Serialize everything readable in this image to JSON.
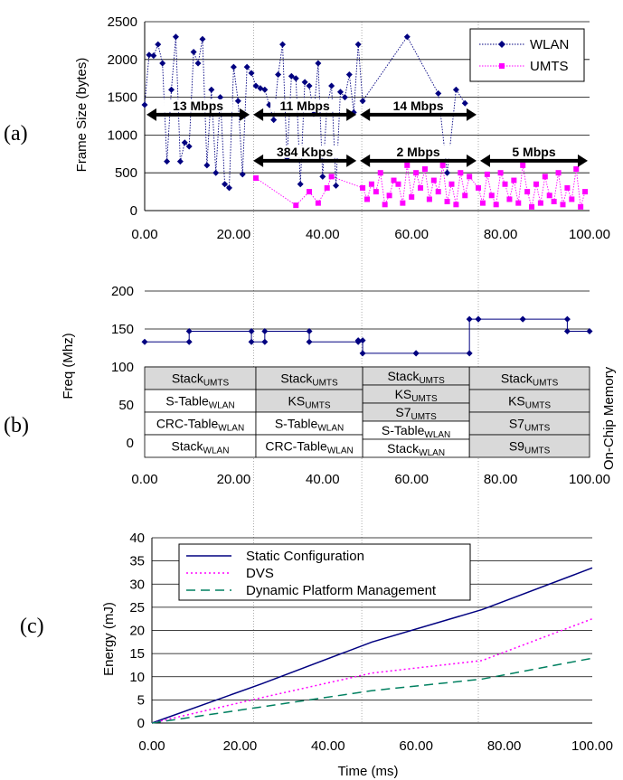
{
  "chart_data": [
    {
      "id": "a",
      "panel_label": "(a)",
      "type": "line",
      "ylabel": "Frame Size (bytes)",
      "xlim": [
        0,
        100
      ],
      "ylim": [
        0,
        2500
      ],
      "xticks": [
        "0.00",
        "20.00",
        "40.00",
        "60.00",
        "80.00",
        "100.00"
      ],
      "yticks": [
        "0",
        "500",
        "1000",
        "1500",
        "2000",
        "2500"
      ],
      "legend_position": "top-right",
      "series": [
        {
          "name": "WLAN",
          "color": "#000080",
          "marker": "diamond",
          "x": [
            0,
            1,
            2,
            3,
            4,
            5,
            6,
            7,
            8,
            9,
            10,
            11,
            12,
            13,
            14,
            15,
            16,
            17,
            18,
            19,
            20,
            21,
            22,
            23,
            24,
            25,
            26,
            27,
            28,
            29,
            30,
            31,
            32,
            33,
            34,
            35,
            36,
            37,
            38,
            39,
            40,
            41,
            42,
            43,
            44,
            45,
            46,
            47,
            48,
            49,
            59,
            66,
            68,
            70,
            72
          ],
          "y": [
            1400,
            2060,
            2050,
            2200,
            1950,
            650,
            1600,
            2300,
            650,
            900,
            850,
            2100,
            1950,
            2270,
            600,
            1600,
            500,
            1500,
            350,
            300,
            1900,
            1450,
            480,
            1900,
            1820,
            1650,
            1620,
            1600,
            1400,
            1200,
            1800,
            2200,
            700,
            1780,
            1750,
            350,
            1700,
            1650,
            1280,
            1950,
            450,
            1400,
            1650,
            330,
            1570,
            1500,
            1800,
            1300,
            2200,
            1450,
            2300,
            1550,
            500,
            1600,
            1420
          ]
        },
        {
          "name": "UMTS",
          "color": "#ff00ff",
          "marker": "square",
          "x": [
            25,
            34,
            37,
            39,
            41,
            42,
            49,
            50,
            51,
            52,
            53,
            54,
            55,
            56,
            57,
            58,
            59,
            60,
            61,
            62,
            63,
            64,
            65,
            66,
            67,
            68,
            69,
            70,
            71,
            72,
            73,
            75,
            76,
            77,
            78,
            79,
            80,
            81,
            82,
            83,
            84,
            85,
            86,
            87,
            88,
            89,
            90,
            91,
            92,
            93,
            94,
            95,
            96,
            97,
            98,
            99
          ],
          "y": [
            430,
            70,
            250,
            100,
            300,
            450,
            300,
            150,
            350,
            250,
            500,
            80,
            200,
            400,
            350,
            100,
            600,
            180,
            500,
            300,
            550,
            150,
            400,
            250,
            600,
            120,
            350,
            80,
            500,
            200,
            450,
            300,
            100,
            480,
            200,
            80,
            500,
            350,
            150,
            400,
            100,
            600,
            250,
            50,
            350,
            100,
            450,
            200,
            120,
            500,
            80,
            300,
            150,
            550,
            50,
            250
          ]
        }
      ],
      "annotations": [
        {
          "label": "13 Mbps",
          "x0": 0,
          "x1": 24,
          "y": 1270
        },
        {
          "label": "11 Mbps",
          "x0": 24,
          "x1": 48,
          "y": 1270
        },
        {
          "label": "14 Mbps",
          "x0": 48,
          "x1": 75,
          "y": 1270
        },
        {
          "label": "384 Kbps",
          "x0": 24,
          "x1": 48,
          "y": 660
        },
        {
          "label": "2 Mbps",
          "x0": 48,
          "x1": 75,
          "y": 660
        },
        {
          "label": "5 Mbps",
          "x0": 75,
          "x1": 100,
          "y": 660
        }
      ]
    },
    {
      "id": "b",
      "panel_label": "(b)",
      "type": "line",
      "ylabel": "Freq (Mhz)",
      "y2label": "On-Chip Memory",
      "xlim": [
        0,
        100
      ],
      "ylim": [
        0,
        200
      ],
      "xticks": [
        "0.00",
        "20.00",
        "40.00",
        "60.00",
        "80.00",
        "100.00"
      ],
      "yticks": [
        "0",
        "50",
        "100",
        "150",
        "200"
      ],
      "series": [
        {
          "name": "Freq",
          "color": "#000080",
          "marker": "diamond",
          "x": [
            0,
            10,
            10,
            24,
            24,
            27,
            27,
            37,
            37,
            48,
            48,
            49,
            49,
            61,
            61,
            73,
            73,
            75,
            75,
            85,
            85,
            95,
            95,
            100
          ],
          "y": [
            133,
            133,
            147,
            147,
            133,
            133,
            147,
            147,
            133,
            133,
            135,
            135,
            118,
            118,
            118,
            118,
            163,
            163,
            163,
            163,
            163,
            163,
            147,
            147
          ]
        }
      ],
      "memory_columns": [
        {
          "x0": 0,
          "x1": 25,
          "rows": [
            {
              "main": "Stack",
              "sub": "UMTS",
              "shaded": true
            },
            {
              "main": "S-Table",
              "sub": "WLAN",
              "shaded": false
            },
            {
              "main": "CRC-Table",
              "sub": "WLAN",
              "shaded": false
            },
            {
              "main": "Stack",
              "sub": "WLAN",
              "shaded": false
            }
          ]
        },
        {
          "x0": 25,
          "x1": 49,
          "rows": [
            {
              "main": "Stack",
              "sub": "UMTS",
              "shaded": true
            },
            {
              "main": "KS",
              "sub": "UMTS",
              "shaded": true
            },
            {
              "main": "S-Table",
              "sub": "WLAN",
              "shaded": false
            },
            {
              "main": "CRC-Table",
              "sub": "WLAN",
              "shaded": false
            }
          ]
        },
        {
          "x0": 49,
          "x1": 73,
          "rows": [
            {
              "main": "Stack",
              "sub": "UMTS",
              "shaded": true
            },
            {
              "main": "KS",
              "sub": "UMTS",
              "shaded": true
            },
            {
              "main": "S7",
              "sub": "UMTS",
              "shaded": true
            },
            {
              "main": "S-Table",
              "sub": "WLAN",
              "shaded": false
            },
            {
              "main": "Stack",
              "sub": "WLAN",
              "shaded": false
            }
          ]
        },
        {
          "x0": 73,
          "x1": 100,
          "rows": [
            {
              "main": "Stack",
              "sub": "UMTS",
              "shaded": true
            },
            {
              "main": "KS",
              "sub": "UMTS",
              "shaded": true
            },
            {
              "main": "S7",
              "sub": "UMTS",
              "shaded": true
            },
            {
              "main": "S9",
              "sub": "UMTS",
              "shaded": true
            }
          ]
        }
      ]
    },
    {
      "id": "c",
      "panel_label": "(c)",
      "type": "line",
      "xlabel": "Time (ms)",
      "ylabel": "Energy (mJ)",
      "xlim": [
        0,
        100
      ],
      "ylim": [
        0,
        40
      ],
      "xticks": [
        "0.00",
        "20.00",
        "40.00",
        "60.00",
        "80.00",
        "100.00"
      ],
      "yticks": [
        "0",
        "5",
        "10",
        "15",
        "20",
        "25",
        "30",
        "35",
        "40"
      ],
      "legend_position": "top-left",
      "series": [
        {
          "name": "Static Configuration",
          "color": "#000080",
          "dash": "solid",
          "x": [
            0,
            25,
            50,
            75,
            100
          ],
          "y": [
            0,
            8.5,
            17.5,
            24.5,
            33.5
          ]
        },
        {
          "name": "DVS",
          "color": "#ff00ff",
          "dash": "dotted",
          "x": [
            0,
            25,
            50,
            75,
            100
          ],
          "y": [
            0,
            5.5,
            10.8,
            13.5,
            22.5
          ]
        },
        {
          "name": "Dynamic Platform Management",
          "color": "#008060",
          "dash": "dashed",
          "x": [
            0,
            25,
            50,
            75,
            100
          ],
          "y": [
            0,
            3.5,
            7,
            9.5,
            14
          ]
        }
      ]
    }
  ]
}
